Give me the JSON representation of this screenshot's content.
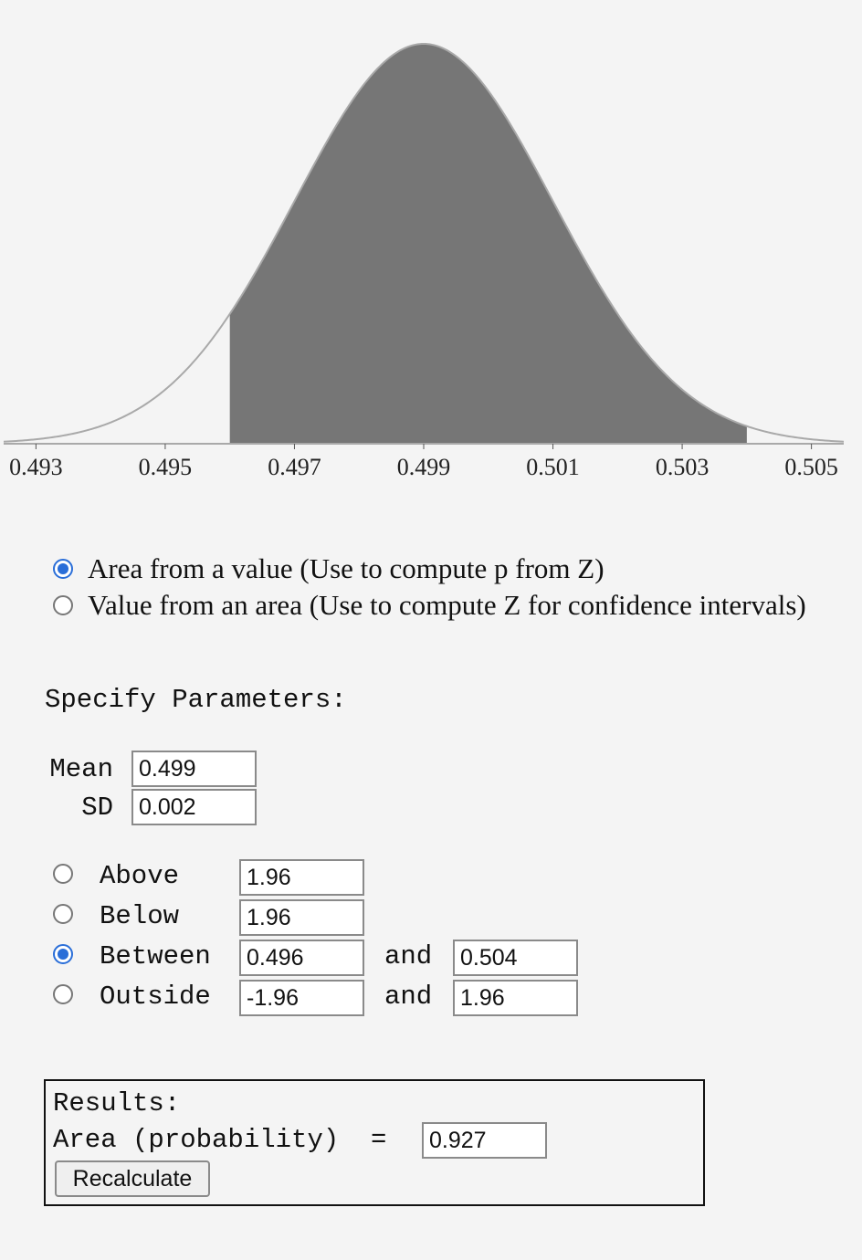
{
  "chart_data": {
    "type": "area",
    "distribution": "normal",
    "mean": 0.499,
    "sd": 0.002,
    "xlim": [
      0.4925,
      0.5055
    ],
    "x_ticks": [
      "0.493",
      "0.495",
      "0.497",
      "0.499",
      "0.501",
      "0.503",
      "0.505"
    ],
    "shaded_interval": [
      0.496,
      0.504
    ],
    "curve_color": "#a9a9a9",
    "fill_color": "#767676"
  },
  "mode_options": [
    {
      "label": "Area from a value (Use to compute p from Z)",
      "selected": true
    },
    {
      "label": "Value from an area (Use to compute Z for confidence intervals)",
      "selected": false
    }
  ],
  "parameters": {
    "title": "Specify Parameters:",
    "mean_label": "Mean",
    "mean_value": "0.499",
    "sd_label": "SD",
    "sd_value": "0.002"
  },
  "tails": {
    "and_label": "and",
    "above": {
      "label": "Above",
      "value": "1.96",
      "selected": false
    },
    "below": {
      "label": "Below",
      "value": "1.96",
      "selected": false
    },
    "between": {
      "label": "Between",
      "value_low": "0.496",
      "value_high": "0.504",
      "selected": true
    },
    "outside": {
      "label": "Outside",
      "value_low": "-1.96",
      "value_high": "1.96",
      "selected": false
    }
  },
  "results": {
    "title": "Results:",
    "area_label": "Area (probability)  =",
    "area_value": "0.927",
    "recalculate_label": "Recalculate"
  },
  "colors": {
    "background": "#f4f4f4",
    "radio_accent": "#2a6ed8"
  }
}
